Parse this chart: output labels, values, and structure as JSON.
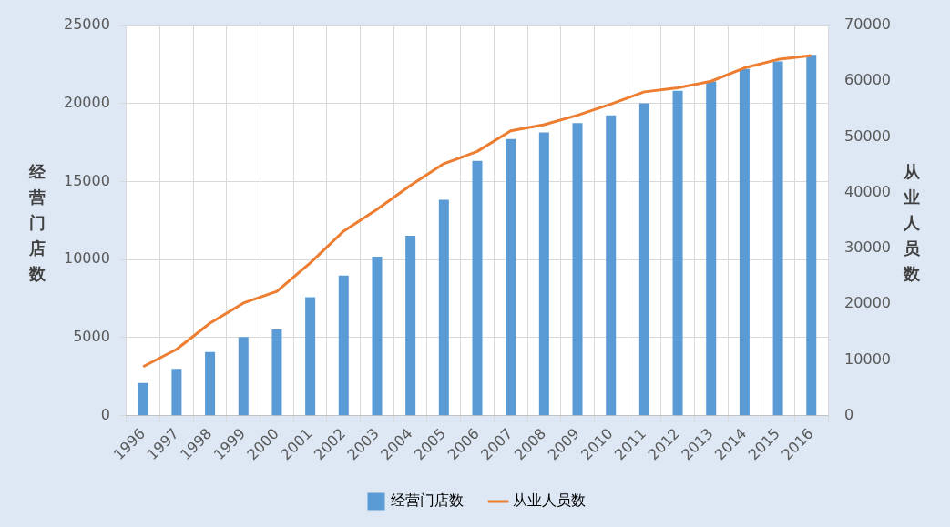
{
  "chart_data": {
    "type": "bar",
    "ylabel": "经营门店数",
    "y2label": "从业人员数",
    "categories": [
      "1996",
      "1997",
      "1998",
      "1999",
      "2000",
      "2001",
      "2002",
      "2003",
      "2004",
      "2005",
      "2006",
      "2007",
      "2008",
      "2009",
      "2010",
      "2011",
      "2012",
      "2013",
      "2014",
      "2015",
      "2016"
    ],
    "series": [
      {
        "name": "经营门店数",
        "color": "#5b9bd5",
        "values": [
          2100,
          3000,
          4070,
          5040,
          5520,
          7590,
          8980,
          10190,
          11530,
          13830,
          16320,
          17720,
          18140,
          18750,
          19240,
          20020,
          20810,
          21420,
          22210,
          22690,
          23120
        ]
      },
      {
        "name": "从业人员数",
        "type": "line",
        "axis": "y2",
        "color": "#ed7d31",
        "values": [
          8800,
          11900,
          16600,
          20200,
          22300,
          27400,
          33100,
          37000,
          41300,
          45200,
          47400,
          51100,
          52200,
          53900,
          55900,
          58100,
          58800,
          60000,
          62400,
          63900,
          64600
        ]
      }
    ],
    "ylim": [
      0,
      25000
    ],
    "yticks": [
      0,
      5000,
      10000,
      15000,
      20000,
      25000
    ],
    "y2lim": [
      0,
      70000
    ],
    "y2ticks": [
      0,
      10000,
      20000,
      30000,
      40000,
      50000,
      60000,
      70000
    ],
    "grid": true,
    "legend": "bottom",
    "marker": "none",
    "line_style": "solid"
  }
}
